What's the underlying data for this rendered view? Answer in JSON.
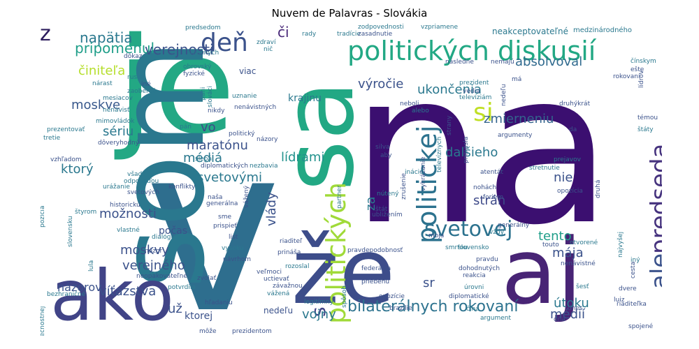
{
  "title": "Nuvem de Palavras - Slovákia",
  "words": [
    {
      "text": "na",
      "color": "#3b0f70"
    },
    {
      "text": "v",
      "color": "#2e6e8e"
    },
    {
      "text": "je",
      "color": "#23a884"
    },
    {
      "text": "som",
      "color": "#2a788e"
    },
    {
      "text": "sa",
      "color": "#22a884"
    },
    {
      "text": "že",
      "color": "#3d4d8a"
    },
    {
      "text": "aj",
      "color": "#482475"
    },
    {
      "text": "ako",
      "color": "#414487"
    },
    {
      "text": "politických diskusií",
      "color": "#22a884"
    },
    {
      "text": "predseda",
      "color": "#46337e"
    },
    {
      "text": "ale",
      "color": "#3b528b"
    },
    {
      "text": "politickej",
      "color": "#2c728e"
    },
    {
      "text": "politických",
      "color": "#a0da39"
    },
    {
      "text": "svetovej",
      "color": "#2c728e"
    },
    {
      "text": "bilaterálnych rokovaní",
      "color": "#2c728e"
    },
    {
      "text": "deň",
      "color": "#3b528b"
    },
    {
      "text": "z",
      "color": "#2d1e5e"
    },
    {
      "text": "si",
      "color": "#c0df25"
    },
    {
      "text": "s",
      "color": "#414487"
    },
    {
      "text": "napätia",
      "color": "#2a788e"
    },
    {
      "text": "pripomenul",
      "color": "#1f9e89"
    },
    {
      "text": "verejnosti",
      "color": "#3b528b"
    },
    {
      "text": "či",
      "color": "#482878"
    },
    {
      "text": "výročie",
      "color": "#3b528b"
    },
    {
      "text": "ukončenia",
      "color": "#2a788e"
    },
    {
      "text": "absolvoval",
      "color": "#306a8e"
    },
    {
      "text": "činiteľa",
      "color": "#b5de2b"
    },
    {
      "text": "moskve",
      "color": "#38588c"
    },
    {
      "text": "sériu",
      "color": "#2a788e"
    },
    {
      "text": "vo",
      "color": "#3e4989"
    },
    {
      "text": "maratónu",
      "color": "#3b528b"
    },
    {
      "text": "médiá",
      "color": "#2a788e"
    },
    {
      "text": "dalšieho",
      "color": "#2a788e"
    },
    {
      "text": "zmierneniu",
      "color": "#33638d"
    },
    {
      "text": "lídrami",
      "color": "#21918c"
    },
    {
      "text": "ktorý",
      "color": "#2a788e"
    },
    {
      "text": "svetovými",
      "color": "#2a788e"
    },
    {
      "text": "vlády",
      "color": "#3b528b"
    },
    {
      "text": "za",
      "color": "#2a788e"
    },
    {
      "text": "nie",
      "color": "#3b528b"
    },
    {
      "text": "strán",
      "color": "#3e4a89"
    },
    {
      "text": "možnosti",
      "color": "#3b528b"
    },
    {
      "text": "tento",
      "color": "#1f9e89"
    },
    {
      "text": "mája",
      "color": "#3b528b"
    },
    {
      "text": "moskvy",
      "color": "#3b528b"
    },
    {
      "text": "verejného",
      "color": "#3b528b"
    },
    {
      "text": "víťazstva",
      "color": "#3b528b"
    },
    {
      "text": "útoku",
      "color": "#2a788e"
    },
    {
      "text": "médií",
      "color": "#3b528b"
    },
    {
      "text": "sr",
      "color": "#3b528b"
    },
    {
      "text": "už",
      "color": "#3b528b"
    },
    {
      "text": "vojny",
      "color": "#2a788e"
    },
    {
      "text": "názorov",
      "color": "#3b528b"
    },
    {
      "text": "ktorej",
      "color": "#3b528b"
    },
    {
      "text": "krajinu",
      "color": "#2a788e"
    },
    {
      "text": "neakceptovateľné",
      "color": "#2a788e"
    },
    {
      "text": "viac",
      "color": "#3b528b"
    },
    {
      "text": "počas",
      "color": "#3b528b"
    },
    {
      "text": "nedeľu",
      "color": "#3b528b"
    },
    {
      "text": "medzinárodného",
      "color": "#2a788e"
    },
    {
      "text": "predsedom",
      "color": "#2a788e"
    },
    {
      "text": "zodpovednosti",
      "color": "#2a788e"
    },
    {
      "text": "vzpriamene",
      "color": "#2a788e"
    },
    {
      "text": "tradície",
      "color": "#2a788e"
    },
    {
      "text": "zasadnutie",
      "color": "#3b528b"
    },
    {
      "text": "rady",
      "color": "#2a788e"
    },
    {
      "text": "dôkaz",
      "color": "#3b528b"
    },
    {
      "text": "zdraví",
      "color": "#2a788e"
    },
    {
      "text": "nič",
      "color": "#2a788e"
    },
    {
      "text": "vlastných",
      "color": "#2a788e"
    },
    {
      "text": "obrovský",
      "color": "#2a788e"
    },
    {
      "text": "fyzické",
      "color": "#3b528b"
    },
    {
      "text": "ruská",
      "color": "#2a788e"
    },
    {
      "text": "nárast",
      "color": "#2a788e"
    },
    {
      "text": "iné",
      "color": "#3b528b"
    },
    {
      "text": "zaoberať",
      "color": "#2a788e"
    },
    {
      "text": "mesiacov",
      "color": "#2a788e"
    },
    {
      "text": "nenávisť",
      "color": "#2a788e"
    },
    {
      "text": "mimovládok",
      "color": "#2a788e"
    },
    {
      "text": "prezentovať",
      "color": "#2a788e"
    },
    {
      "text": "tretie",
      "color": "#2a788e"
    },
    {
      "text": "dôveryhodný",
      "color": "#3b528b"
    },
    {
      "text": "vzhľadom",
      "color": "#3b528b"
    },
    {
      "text": "všade",
      "color": "#2a788e"
    },
    {
      "text": "odpoveďou",
      "color": "#2a788e"
    },
    {
      "text": "urážanie",
      "color": "#2a788e"
    },
    {
      "text": "svetových",
      "color": "#3b528b"
    },
    {
      "text": "historickú",
      "color": "#3b528b"
    },
    {
      "text": "štyrom",
      "color": "#2a788e"
    },
    {
      "text": "vlastné",
      "color": "#2a788e"
    },
    {
      "text": "dialógu",
      "color": "#2a788e"
    },
    {
      "text": "názor",
      "color": "#3b528b"
    },
    {
      "text": "neopakovateľné",
      "color": "#3b528b"
    },
    {
      "text": "bezhraničné",
      "color": "#2a788e"
    },
    {
      "text": "bezpečnostnej",
      "color": "#2a788e"
    },
    {
      "text": "slovensku",
      "color": "#2a788e"
    },
    {
      "text": "pozícia",
      "color": "#2a788e"
    },
    {
      "text": "lula",
      "color": "#2a788e"
    },
    {
      "text": "pani",
      "color": "#2a788e"
    },
    {
      "text": "slováci",
      "color": "#2a788e"
    },
    {
      "text": "nikdy",
      "color": "#3b528b"
    },
    {
      "text": "pán",
      "color": "#2a788e"
    },
    {
      "text": "politický",
      "color": "#3b528b"
    },
    {
      "text": "uznanie",
      "color": "#2a788e"
    },
    {
      "text": "nenávistných",
      "color": "#3b528b"
    },
    {
      "text": "názory",
      "color": "#3b528b"
    },
    {
      "text": "slepá",
      "color": "#2a788e"
    },
    {
      "text": "diplomatických",
      "color": "#3b528b"
    },
    {
      "text": "nezbavia",
      "color": "#2a788e"
    },
    {
      "text": "konflikty",
      "color": "#3b528b"
    },
    {
      "text": "naša",
      "color": "#3b528b"
    },
    {
      "text": "generálna",
      "color": "#3b528b"
    },
    {
      "text": "sme",
      "color": "#3b528b"
    },
    {
      "text": "prispieť",
      "color": "#3b528b"
    },
    {
      "text": "list",
      "color": "#3b528b"
    },
    {
      "text": "vysokú",
      "color": "#2a788e"
    },
    {
      "text": "návrhom",
      "color": "#3b528b"
    },
    {
      "text": "riaditeľ",
      "color": "#3b528b"
    },
    {
      "text": "prináša",
      "color": "#3b528b"
    },
    {
      "text": "rozoslal",
      "color": "#2a788e"
    },
    {
      "text": "veľmoci",
      "color": "#3b528b"
    },
    {
      "text": "uctievať",
      "color": "#3b528b"
    },
    {
      "text": "závažnou",
      "color": "#3b528b"
    },
    {
      "text": "vážená",
      "color": "#2a788e"
    },
    {
      "text": "zvolať",
      "color": "#3b528b"
    },
    {
      "text": "potvrdila",
      "color": "#2a788e"
    },
    {
      "text": "hľadaniu",
      "color": "#3b528b"
    },
    {
      "text": "môže",
      "color": "#3b528b"
    },
    {
      "text": "prezidentom",
      "color": "#3b528b"
    },
    {
      "text": "legitímny",
      "color": "#2a788e"
    },
    {
      "text": "vážený",
      "color": "#3b528b"
    },
    {
      "text": "zrušenie",
      "color": "#3b528b"
    },
    {
      "text": "nútený",
      "color": "#2a788e"
    },
    {
      "text": "vyhrážanie",
      "color": "#3b528b"
    },
    {
      "text": "partner",
      "color": "#2a788e"
    },
    {
      "text": "silva",
      "color": "#3b528b"
    },
    {
      "text": "aby",
      "color": "#3b528b"
    },
    {
      "text": "štát",
      "color": "#3b528b"
    },
    {
      "text": "ubližením",
      "color": "#3b528b"
    },
    {
      "text": "alebo",
      "color": "#2a788e"
    },
    {
      "text": "inácio",
      "color": "#2a788e"
    },
    {
      "text": "strany",
      "color": "#3b528b"
    },
    {
      "text": "televíznych",
      "color": "#2a788e"
    },
    {
      "text": "priniesla",
      "color": "#3b528b"
    },
    {
      "text": "moja",
      "color": "#3b528b"
    },
    {
      "text": "pravdepodobnosť",
      "color": "#3b528b"
    },
    {
      "text": "smrťou",
      "color": "#2a788e"
    },
    {
      "text": "slovensko",
      "color": "#2a788e"
    },
    {
      "text": "pravdu",
      "color": "#3b528b"
    },
    {
      "text": "dohodnutých",
      "color": "#3b528b"
    },
    {
      "text": "federácia",
      "color": "#3b528b"
    },
    {
      "text": "priebehu",
      "color": "#3b528b"
    },
    {
      "text": "reakcia",
      "color": "#3b528b"
    },
    {
      "text": "úrovni",
      "color": "#2a788e"
    },
    {
      "text": "opozície",
      "color": "#3b528b"
    },
    {
      "text": "diplomatické",
      "color": "#3b528b"
    },
    {
      "text": "brazílie",
      "color": "#3b528b"
    },
    {
      "text": "čína",
      "color": "#2a788e"
    },
    {
      "text": "argument",
      "color": "#2a788e"
    },
    {
      "text": "spôsob",
      "color": "#2a788e"
    },
    {
      "text": "následne",
      "color": "#3b528b"
    },
    {
      "text": "nemajú",
      "color": "#3b528b"
    },
    {
      "text": "má",
      "color": "#3b528b"
    },
    {
      "text": "prezident",
      "color": "#2a788e"
    },
    {
      "text": "vedia",
      "color": "#3b528b"
    },
    {
      "text": "televíziám",
      "color": "#2a788e"
    },
    {
      "text": "neboli",
      "color": "#3b528b"
    },
    {
      "text": "druhýkrát",
      "color": "#3b528b"
    },
    {
      "text": "da",
      "color": "#3b528b"
    },
    {
      "text": "argumenty",
      "color": "#3b528b"
    },
    {
      "text": "nedeľu",
      "color": "#3b528b"
    },
    {
      "text": "čínskym",
      "color": "#2a788e"
    },
    {
      "text": "ešte",
      "color": "#3b528b"
    },
    {
      "text": "rokovaní",
      "color": "#3b528b"
    },
    {
      "text": "lídrov",
      "color": "#3b528b"
    },
    {
      "text": "témou",
      "color": "#3b528b"
    },
    {
      "text": "štáty",
      "color": "#2a788e"
    },
    {
      "text": "prejavov",
      "color": "#2a788e"
    },
    {
      "text": "stretnutie",
      "color": "#2a788e"
    },
    {
      "text": "atentát",
      "color": "#3b528b"
    },
    {
      "text": "nohách",
      "color": "#3b528b"
    },
    {
      "text": "foriem",
      "color": "#3b528b"
    },
    {
      "text": "opozícia",
      "color": "#3b528b"
    },
    {
      "text": "druhá",
      "color": "#3b528b"
    },
    {
      "text": "generálny",
      "color": "#3b528b"
    },
    {
      "text": "vždy",
      "color": "#2a788e"
    },
    {
      "text": "touto",
      "color": "#3b528b"
    },
    {
      "text": "otvorené",
      "color": "#2a788e"
    },
    {
      "text": "najvyšej",
      "color": "#2a788e"
    },
    {
      "text": "iný",
      "color": "#2a788e"
    },
    {
      "text": "nenávistné",
      "color": "#3b528b"
    },
    {
      "text": "cesta",
      "color": "#3b528b"
    },
    {
      "text": "šesť",
      "color": "#2a788e"
    },
    {
      "text": "dvere",
      "color": "#3b528b"
    },
    {
      "text": "luiz",
      "color": "#3b528b"
    },
    {
      "text": "dnes",
      "color": "#3b528b"
    },
    {
      "text": "riaditeľka",
      "color": "#3b528b"
    },
    {
      "text": "dňa",
      "color": "#3b528b"
    },
    {
      "text": "spojené",
      "color": "#3b528b"
    }
  ]
}
